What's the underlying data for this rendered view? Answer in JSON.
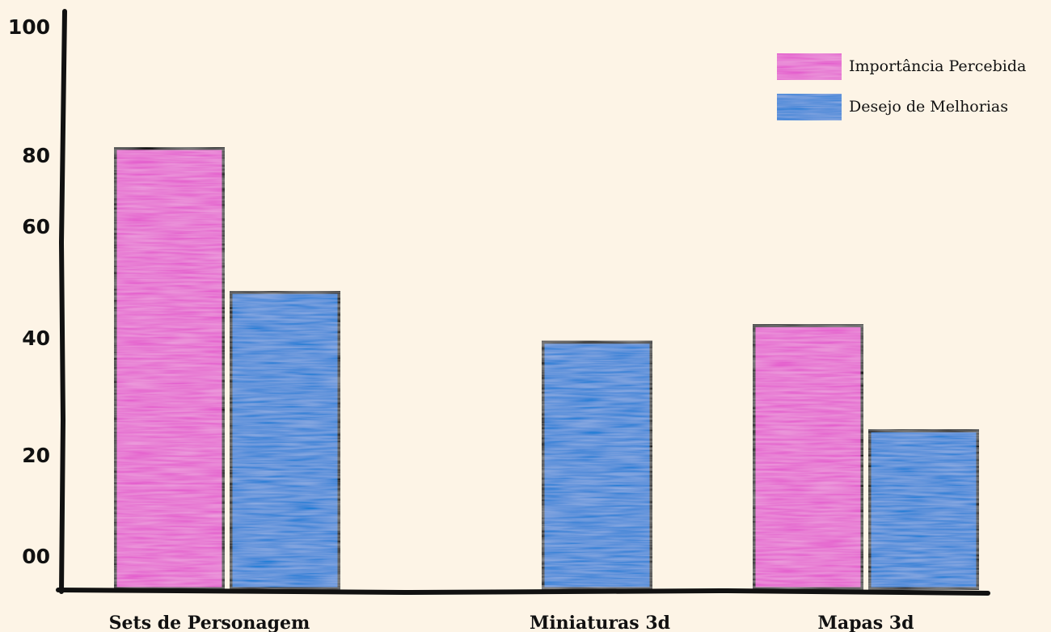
{
  "chart_data": {
    "type": "bar",
    "categories": [
      "Sets de Personagem",
      "Miniaturas 3d",
      "Mapas 3d"
    ],
    "series": [
      {
        "name": "Importância Percebida",
        "values": [
          80,
          null,
          48
        ],
        "color": "#e45ccd"
      },
      {
        "name": "Desejo de Melhorias",
        "values": [
          54,
          45,
          29
        ],
        "color": "#1a7dd6"
      }
    ],
    "y_ticks": [
      {
        "value": 0,
        "label": "00"
      },
      {
        "value": 20,
        "label": "20"
      },
      {
        "value": 40,
        "label": "40"
      },
      {
        "value": 60,
        "label": "60"
      },
      {
        "value": 80,
        "label": "80"
      },
      {
        "value": 100,
        "label": "100"
      }
    ],
    "ylim": [
      0,
      100
    ],
    "title": "",
    "xlabel": "",
    "ylabel": "",
    "legend_position": "top-right",
    "grid": false
  }
}
